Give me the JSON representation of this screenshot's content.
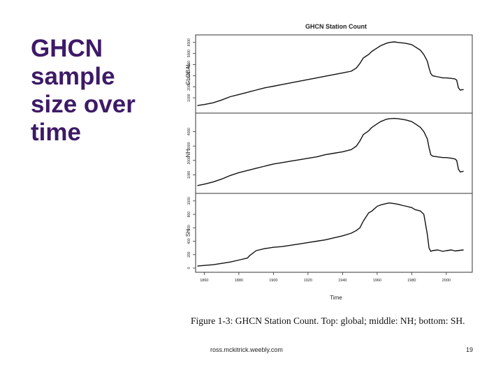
{
  "slide": {
    "title_lines": [
      "GHCN",
      "sample",
      "size over",
      "time"
    ],
    "caption": "Figure 1-3: GHCN Station Count. Top: global; middle: NH; bottom: SH.",
    "footer_source": "ross.mckitrick.weebly.com",
    "page_number": "19"
  },
  "chart_data": {
    "type": "line",
    "title": "GHCN Station Count",
    "xlabel": "Time",
    "x_ticks": [
      "1860",
      "1880",
      "1900",
      "1920",
      "1940",
      "1960",
      "1980",
      "2000"
    ],
    "xlim": [
      1855,
      2015
    ],
    "line_color": "#111111",
    "panels": [
      {
        "name": "GLOBAL",
        "ylim": [
          0,
          6300
        ],
        "y_ticks": [
          "1000",
          "2000",
          "3000",
          "4000",
          "5000",
          "6000"
        ],
        "x": [
          1856,
          1860,
          1865,
          1870,
          1875,
          1880,
          1885,
          1890,
          1895,
          1900,
          1905,
          1910,
          1915,
          1920,
          1925,
          1930,
          1935,
          1940,
          1945,
          1948,
          1950,
          1952,
          1955,
          1957,
          1960,
          1962,
          1965,
          1967,
          1970,
          1972,
          1975,
          1977,
          1980,
          1982,
          1985,
          1987,
          1989,
          1990,
          1991,
          1992,
          1995,
          1998,
          2000,
          2003,
          2005,
          2006,
          2007,
          2008,
          2010
        ],
        "y": [
          300,
          400,
          550,
          800,
          1100,
          1300,
          1500,
          1700,
          1900,
          2050,
          2200,
          2350,
          2500,
          2650,
          2800,
          2950,
          3100,
          3250,
          3400,
          3700,
          4100,
          4600,
          4900,
          5200,
          5500,
          5700,
          5900,
          6000,
          6050,
          6000,
          5950,
          5900,
          5800,
          5600,
          5300,
          4900,
          4300,
          3700,
          3200,
          3000,
          2900,
          2800,
          2800,
          2750,
          2700,
          2600,
          1900,
          1700,
          1750
        ]
      },
      {
        "name": "NH",
        "ylim": [
          0,
          5000
        ],
        "y_ticks": [
          "1000",
          "2000",
          "3000",
          "4000"
        ],
        "x": [
          1856,
          1860,
          1865,
          1870,
          1875,
          1880,
          1885,
          1890,
          1895,
          1900,
          1905,
          1910,
          1915,
          1920,
          1925,
          1930,
          1935,
          1940,
          1945,
          1948,
          1950,
          1952,
          1955,
          1957,
          1960,
          1962,
          1965,
          1967,
          1970,
          1972,
          1975,
          1977,
          1980,
          1982,
          1985,
          1987,
          1989,
          1990,
          1991,
          1992,
          1995,
          1998,
          2000,
          2003,
          2005,
          2006,
          2007,
          2008,
          2010
        ],
        "y": [
          250,
          350,
          500,
          700,
          950,
          1150,
          1300,
          1450,
          1600,
          1750,
          1850,
          1950,
          2050,
          2150,
          2250,
          2400,
          2500,
          2600,
          2750,
          3000,
          3350,
          3800,
          4050,
          4300,
          4550,
          4700,
          4850,
          4900,
          4920,
          4900,
          4850,
          4800,
          4700,
          4550,
          4300,
          4000,
          3500,
          2900,
          2400,
          2300,
          2250,
          2200,
          2200,
          2150,
          2100,
          2000,
          1400,
          1200,
          1250
        ]
      },
      {
        "name": "SH",
        "ylim": [
          0,
          1050
        ],
        "y_ticks": [
          "0",
          "200",
          "400",
          "600",
          "800",
          "1000"
        ],
        "x": [
          1856,
          1860,
          1865,
          1870,
          1875,
          1880,
          1885,
          1886,
          1890,
          1895,
          1900,
          1905,
          1910,
          1915,
          1920,
          1925,
          1930,
          1935,
          1940,
          1945,
          1948,
          1950,
          1952,
          1955,
          1957,
          1960,
          1962,
          1965,
          1967,
          1970,
          1972,
          1975,
          1977,
          1980,
          1982,
          1985,
          1987,
          1989,
          1990,
          1991,
          1992,
          1995,
          1998,
          2000,
          2003,
          2005,
          2008,
          2010
        ],
        "y": [
          30,
          40,
          50,
          70,
          90,
          120,
          150,
          180,
          260,
          290,
          310,
          320,
          340,
          360,
          380,
          400,
          420,
          450,
          480,
          520,
          560,
          600,
          700,
          820,
          850,
          920,
          940,
          960,
          970,
          960,
          950,
          930,
          920,
          900,
          870,
          850,
          800,
          500,
          300,
          250,
          260,
          270,
          250,
          260,
          270,
          255,
          265,
          270
        ]
      }
    ]
  }
}
